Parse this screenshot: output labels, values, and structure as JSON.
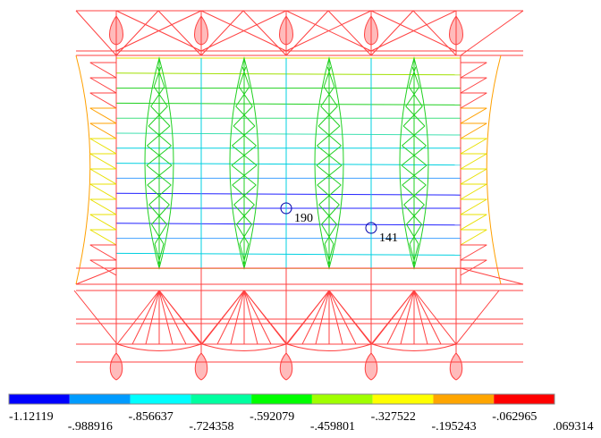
{
  "nodes": [
    {
      "label": "190"
    },
    {
      "label": "141"
    }
  ],
  "legend": {
    "colors": [
      "#0000ff",
      "#009bff",
      "#00ffff",
      "#00ffa0",
      "#00ff00",
      "#a0ff00",
      "#ffff00",
      "#ffa500",
      "#ff0000"
    ],
    "labels": [
      "-1.12119",
      "-.988916",
      "-.856637",
      "-.724358",
      "-.592079",
      "-.459801",
      "-.327522",
      "-.195243",
      "-.062965",
      ".069314"
    ]
  }
}
